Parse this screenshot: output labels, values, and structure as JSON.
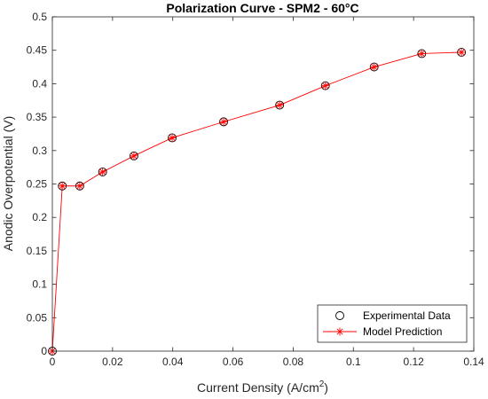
{
  "chart_data": {
    "type": "line",
    "title": "Polarization Curve - SPM2 - 60°C",
    "xlabel_main": "Current Density (A/cm",
    "xlabel_sup": "2",
    "xlabel_tail": ")",
    "ylabel": "Anodic Overpotential (V)",
    "xlim": [
      0,
      0.14
    ],
    "ylim": [
      0,
      0.5
    ],
    "x_ticks": [
      0,
      0.02,
      0.04,
      0.06,
      0.08,
      0.1,
      0.12,
      0.14
    ],
    "x_tick_labels": [
      "0",
      "0.02",
      "0.04",
      "0.06",
      "0.08",
      "0.1",
      "0.12",
      "0.14"
    ],
    "y_ticks": [
      0,
      0.05,
      0.1,
      0.15,
      0.2,
      0.25,
      0.3,
      0.35,
      0.4,
      0.45,
      0.5
    ],
    "y_tick_labels": [
      "0",
      "0.05",
      "0.1",
      "0.15",
      "0.2",
      "0.25",
      "0.3",
      "0.35",
      "0.4",
      "0.45",
      "0.5"
    ],
    "grid": false,
    "legend_position": "bottom-right",
    "series": [
      {
        "name": "Experimental Data",
        "style": "markers",
        "marker": "circle",
        "color": "#000000",
        "x": [
          0,
          0.0033,
          0.0091,
          0.0167,
          0.0271,
          0.0398,
          0.0569,
          0.0755,
          0.0907,
          0.1069,
          0.1227,
          0.1359
        ],
        "y": [
          0,
          0.247,
          0.247,
          0.268,
          0.292,
          0.319,
          0.343,
          0.368,
          0.397,
          0.425,
          0.445,
          0.447
        ]
      },
      {
        "name": "Model Prediction",
        "style": "line+markers",
        "marker": "asterisk",
        "color": "#ff0000",
        "x": [
          0,
          0.0033,
          0.0091,
          0.0167,
          0.0271,
          0.0398,
          0.0569,
          0.0755,
          0.0907,
          0.1069,
          0.1227,
          0.1359
        ],
        "y": [
          0,
          0.247,
          0.247,
          0.268,
          0.292,
          0.319,
          0.343,
          0.368,
          0.397,
          0.425,
          0.445,
          0.447
        ]
      }
    ]
  }
}
